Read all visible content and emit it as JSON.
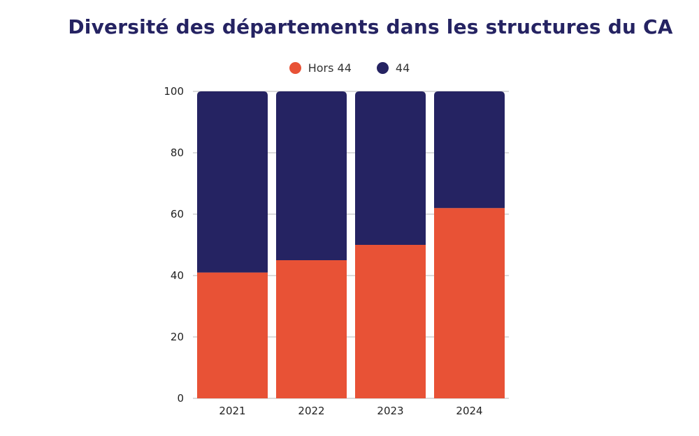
{
  "chart_data": {
    "type": "bar",
    "stacked": true,
    "title": "Diversité des départements dans les structures du CA",
    "categories": [
      "2021",
      "2022",
      "2023",
      "2024"
    ],
    "series": [
      {
        "name": "Hors 44",
        "color": "#E85236",
        "values": [
          41,
          45,
          50,
          62
        ]
      },
      {
        "name": "44",
        "color": "#252362",
        "values": [
          59,
          55,
          50,
          38
        ]
      }
    ],
    "ylim": [
      0,
      100
    ],
    "yticks": [
      "0",
      "20",
      "40",
      "60",
      "80",
      "100"
    ],
    "grid": true,
    "legend_position": "top"
  }
}
